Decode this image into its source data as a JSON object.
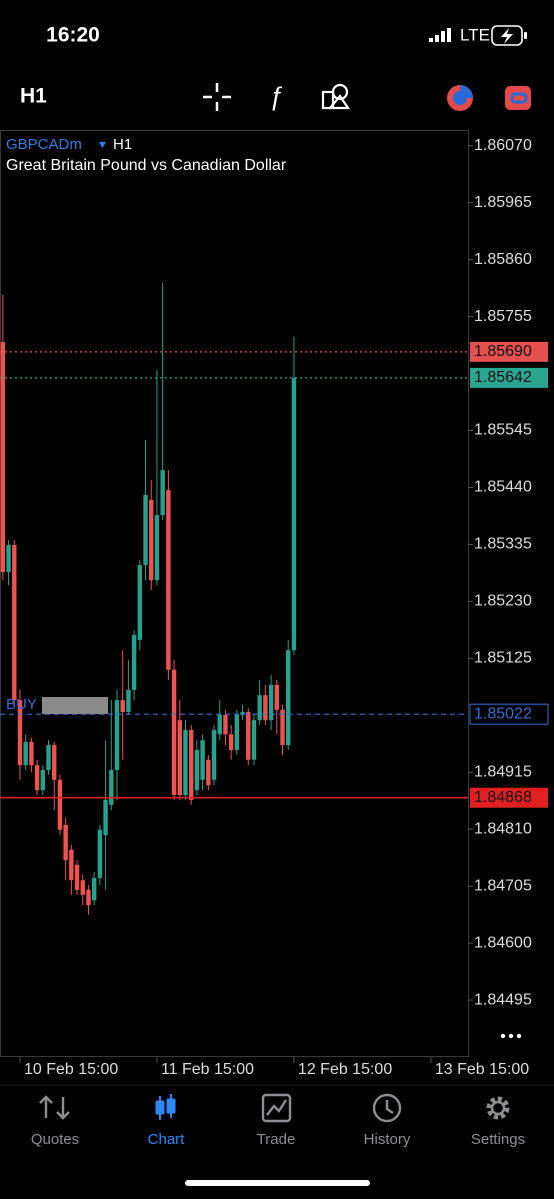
{
  "status_bar": {
    "time": "16:20",
    "network": "LTE"
  },
  "toolbar": {
    "timeframe": "H1"
  },
  "chart_data": {
    "type": "candlestick",
    "symbol": "GBPCADm",
    "timeframe": "H1",
    "title": "Great Britain Pound vs Canadian Dollar",
    "categories": [
      null,
      null,
      null,
      "10 Feb 15:00",
      null,
      null,
      null,
      null,
      null,
      null,
      null,
      null,
      null,
      null,
      null,
      null,
      null,
      null,
      null,
      null,
      null,
      null,
      null,
      null,
      null,
      null,
      null,
      "11 Feb 15:00",
      null,
      null,
      null,
      null,
      null,
      null,
      null,
      null,
      null,
      null,
      null,
      null,
      null,
      null,
      null,
      null,
      null,
      null,
      null,
      null,
      null,
      null,
      null,
      "12 Feb 15:00",
      null,
      null,
      null,
      null,
      null,
      null,
      null,
      null,
      null,
      null,
      null,
      null,
      null,
      null,
      null,
      null,
      null,
      null,
      null,
      null,
      null,
      null,
      null,
      "13 Feb 15:00",
      null,
      null,
      null,
      null,
      null,
      null
    ],
    "open": [
      1.85708,
      1.85284,
      1.85334,
      1.85048,
      1.84928,
      1.84971,
      1.84928,
      1.84882,
      1.84919,
      1.84965,
      1.84901,
      1.84818,
      1.84772,
      1.84744,
      1.84716,
      1.84698,
      1.84679,
      1.8472,
      1.84799,
      1.84855,
      1.84919,
      1.85048,
      1.85026,
      1.85067,
      1.85159,
      1.85297,
      1.85417,
      1.85269,
      1.85389,
      1.85435,
      1.85104,
      1.85011,
      1.84873,
      1.84993,
      1.84882,
      1.84901,
      1.84938,
      1.84901,
      1.84985,
      1.85021,
      1.84985,
      1.84956,
      1.85021,
      1.85026,
      1.84938,
      1.85011,
      1.85057,
      1.85011,
      1.85076,
      1.8503,
      1.84965,
      1.8514,
      null,
      null,
      null,
      null,
      null,
      null,
      null,
      null,
      null,
      null,
      null,
      null,
      null,
      null,
      null,
      null,
      null,
      null,
      null,
      null,
      null,
      null,
      null,
      null,
      null,
      null,
      null,
      null,
      null,
      null
    ],
    "high": [
      1.85795,
      1.85343,
      1.85343,
      1.85067,
      1.84985,
      1.84979,
      1.84938,
      1.84928,
      1.84974,
      1.84971,
      1.8491,
      1.84831,
      1.84781,
      1.84753,
      1.84726,
      1.84707,
      1.84731,
      1.84818,
      1.84974,
      1.85048,
      1.85067,
      1.8514,
      1.85122,
      1.85177,
      1.85306,
      1.85528,
      1.85454,
      1.85657,
      1.85817,
      1.85472,
      1.85122,
      1.85048,
      1.85011,
      1.85002,
      1.84974,
      1.84985,
      1.84947,
      1.85002,
      1.85048,
      1.8503,
      1.85002,
      1.8503,
      1.85039,
      1.85033,
      1.85021,
      1.85085,
      1.85076,
      1.85094,
      1.85085,
      1.85039,
      1.85159,
      1.85718,
      null,
      null,
      null,
      null,
      null,
      null,
      null,
      null,
      null,
      null,
      null,
      null,
      null,
      null,
      null,
      null,
      null,
      null,
      null,
      null,
      null,
      null,
      null,
      null,
      null,
      null,
      null,
      null,
      null,
      null
    ],
    "low": [
      1.85269,
      1.8526,
      1.85039,
      1.84901,
      1.84919,
      1.84915,
      1.84873,
      1.84873,
      1.8491,
      1.84845,
      1.84799,
      1.84716,
      1.84689,
      1.84689,
      1.8467,
      1.84652,
      1.8467,
      1.84707,
      1.84698,
      1.84845,
      1.84864,
      1.84938,
      1.85021,
      1.85048,
      1.8514,
      1.85269,
      1.85251,
      1.8526,
      1.8538,
      1.85085,
      1.84864,
      1.84864,
      1.84864,
      1.84855,
      1.84873,
      1.84882,
      1.84882,
      1.84891,
      1.84974,
      1.84965,
      1.84938,
      1.84947,
      1.85011,
      1.84928,
      1.84928,
      1.85002,
      1.85002,
      1.84993,
      1.84985,
      1.84947,
      1.84956,
      1.85131,
      null,
      null,
      null,
      null,
      null,
      null,
      null,
      null,
      null,
      null,
      null,
      null,
      null,
      null,
      null,
      null,
      null,
      null,
      null,
      null,
      null,
      null,
      null,
      null,
      null,
      null,
      null,
      null,
      null,
      null
    ],
    "close": [
      1.85284,
      1.85334,
      1.85048,
      1.84928,
      1.84971,
      1.84928,
      1.84882,
      1.84919,
      1.84965,
      1.84901,
      1.84809,
      1.84753,
      1.84716,
      1.84698,
      1.84689,
      1.8467,
      1.8472,
      1.84809,
      1.84864,
      1.84919,
      1.85048,
      1.85026,
      1.85067,
      1.85168,
      1.85297,
      1.85426,
      1.85269,
      1.85389,
      1.85472,
      1.85104,
      1.84873,
      1.84873,
      1.84993,
      1.84864,
      1.84956,
      1.84974,
      1.84891,
      1.84993,
      1.85021,
      1.84985,
      1.84956,
      1.85021,
      1.85026,
      1.84938,
      1.85011,
      1.85057,
      1.85011,
      1.85076,
      1.8503,
      1.84965,
      1.8514,
      1.85642,
      null,
      null,
      null,
      null,
      null,
      null,
      null,
      null,
      null,
      null,
      null,
      null,
      null,
      null,
      null,
      null,
      null,
      null,
      null,
      null,
      null,
      null,
      null,
      null,
      null,
      null,
      null,
      null,
      null,
      null
    ],
    "up_color": "#26a18c",
    "down_color": "#ef5350",
    "ylim": [
      1.8439,
      1.86099
    ],
    "yticks": [
      {
        "value": 1.8607,
        "label": "1.86070"
      },
      1.85965,
      {
        "value": 1.8586,
        "label": "1.85860"
      },
      1.85755,
      1.85545,
      {
        "value": 1.8544,
        "label": "1.85440"
      },
      1.85335,
      {
        "value": 1.8523,
        "label": "1.85230"
      },
      1.85125,
      1.84915,
      {
        "value": 1.8481,
        "label": "1.84810"
      },
      1.84705,
      {
        "value": 1.846,
        "label": "1.84600"
      },
      1.84495
    ],
    "grid": false,
    "hlines": [
      {
        "value": 1.8569,
        "label": "1.85690",
        "color": "#e4504d",
        "style": "dotted",
        "tag": "filled"
      },
      {
        "value": 1.85642,
        "color": "#2aa58f",
        "style": "dotted",
        "tag": "filled"
      },
      {
        "value": 1.85022,
        "name": "BUY",
        "color": "#2f6fd6",
        "style": "dashed",
        "tag": "outline"
      },
      {
        "value": 1.84868,
        "color": "#e02020",
        "style": "solid",
        "tag": "filled"
      }
    ]
  },
  "tab_bar": {
    "tabs": [
      "Quotes",
      "Chart",
      "Trade",
      "History",
      "Settings"
    ],
    "active": 1
  }
}
